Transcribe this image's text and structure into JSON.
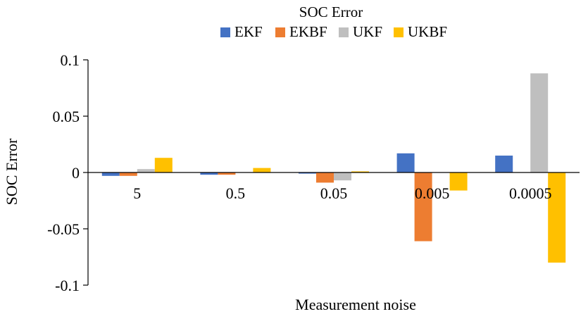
{
  "chart_data": {
    "type": "bar",
    "title": "SOC Error",
    "xlabel": "Measurement noise",
    "ylabel": "SOC Error",
    "categories": [
      "5",
      "0.5",
      "0.05",
      "0.005",
      "0.0005"
    ],
    "series": [
      {
        "name": "EKF",
        "color": "#4472C4",
        "values": [
          -0.003,
          -0.002,
          -0.001,
          0.017,
          0.015
        ]
      },
      {
        "name": "EKBF",
        "color": "#ED7D31",
        "values": [
          -0.003,
          -0.002,
          -0.009,
          -0.061,
          0.0
        ]
      },
      {
        "name": "UKF",
        "color": "#BFBFBF",
        "values": [
          0.003,
          0.0,
          -0.007,
          0.0,
          0.088
        ]
      },
      {
        "name": "UKBF",
        "color": "#FFC000",
        "values": [
          0.013,
          0.004,
          0.001,
          -0.016,
          -0.08
        ]
      }
    ],
    "ylim": [
      -0.1,
      0.1
    ],
    "yticks": [
      0.1,
      0.05,
      0,
      -0.05,
      -0.1
    ],
    "ytick_labels": [
      "0.1",
      "0.05",
      "0",
      "-0.05",
      "-0.1"
    ],
    "grid": false,
    "legend_position": "top"
  }
}
